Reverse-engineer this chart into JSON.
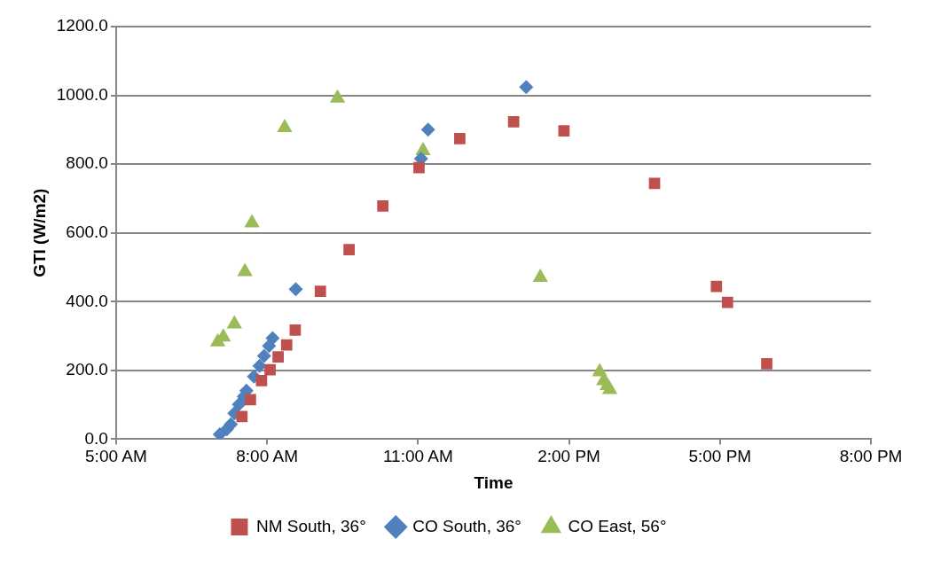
{
  "chart_data": {
    "type": "scatter",
    "xlabel": "Time",
    "ylabel": "GTI (W/m2)",
    "xlim": [
      5,
      20
    ],
    "xticks": [
      {
        "value": 5,
        "label": "5:00 AM"
      },
      {
        "value": 8,
        "label": "8:00 AM"
      },
      {
        "value": 11,
        "label": "11:00 AM"
      },
      {
        "value": 14,
        "label": "2:00 PM"
      },
      {
        "value": 17,
        "label": "5:00 PM"
      },
      {
        "value": 20,
        "label": "8:00 PM"
      }
    ],
    "ylim": [
      0,
      1200
    ],
    "yticks": [
      {
        "value": 0,
        "label": "0.0"
      },
      {
        "value": 200,
        "label": "200.0"
      },
      {
        "value": 400,
        "label": "400.0"
      },
      {
        "value": 600,
        "label": "600.0"
      },
      {
        "value": 800,
        "label": "800.0"
      },
      {
        "value": 1000,
        "label": "1000.0"
      },
      {
        "value": 1200,
        "label": "1200.0"
      }
    ],
    "grid": "y",
    "legend": "bottom",
    "series": [
      {
        "name": "NM South, 36°",
        "color": "#c0504d",
        "marker": "square",
        "x": [
          7.5,
          7.67,
          7.89,
          8.06,
          8.22,
          8.39,
          8.56,
          9.06,
          9.63,
          10.3,
          11.02,
          11.83,
          12.9,
          13.9,
          15.7,
          16.93,
          17.15,
          17.93
        ],
        "values": [
          66,
          115,
          170,
          202,
          239,
          274,
          317,
          430,
          551,
          678,
          790,
          874,
          923,
          897,
          744,
          444,
          398,
          219
        ]
      },
      {
        "name": "CO South, 36°",
        "color": "#4f81bd",
        "marker": "diamond",
        "x": [
          7.06,
          7.2,
          7.28,
          7.35,
          7.44,
          7.54,
          7.59,
          7.74,
          7.85,
          7.94,
          8.04,
          8.11,
          8.57,
          11.06,
          11.2,
          13.15
        ],
        "values": [
          14,
          29,
          43,
          75,
          101,
          124,
          141,
          182,
          213,
          242,
          271,
          294,
          436,
          816,
          900,
          1024
        ]
      },
      {
        "name": "CO East, 56°",
        "color": "#9bbb59",
        "marker": "triangle",
        "x": [
          7.02,
          7.13,
          7.35,
          7.56,
          7.7,
          8.35,
          9.4,
          11.1,
          13.43,
          14.61,
          14.69,
          14.76,
          14.81
        ],
        "values": [
          283,
          297,
          335,
          487,
          629,
          906,
          992,
          839,
          470,
          196,
          170,
          156,
          144
        ]
      }
    ]
  }
}
